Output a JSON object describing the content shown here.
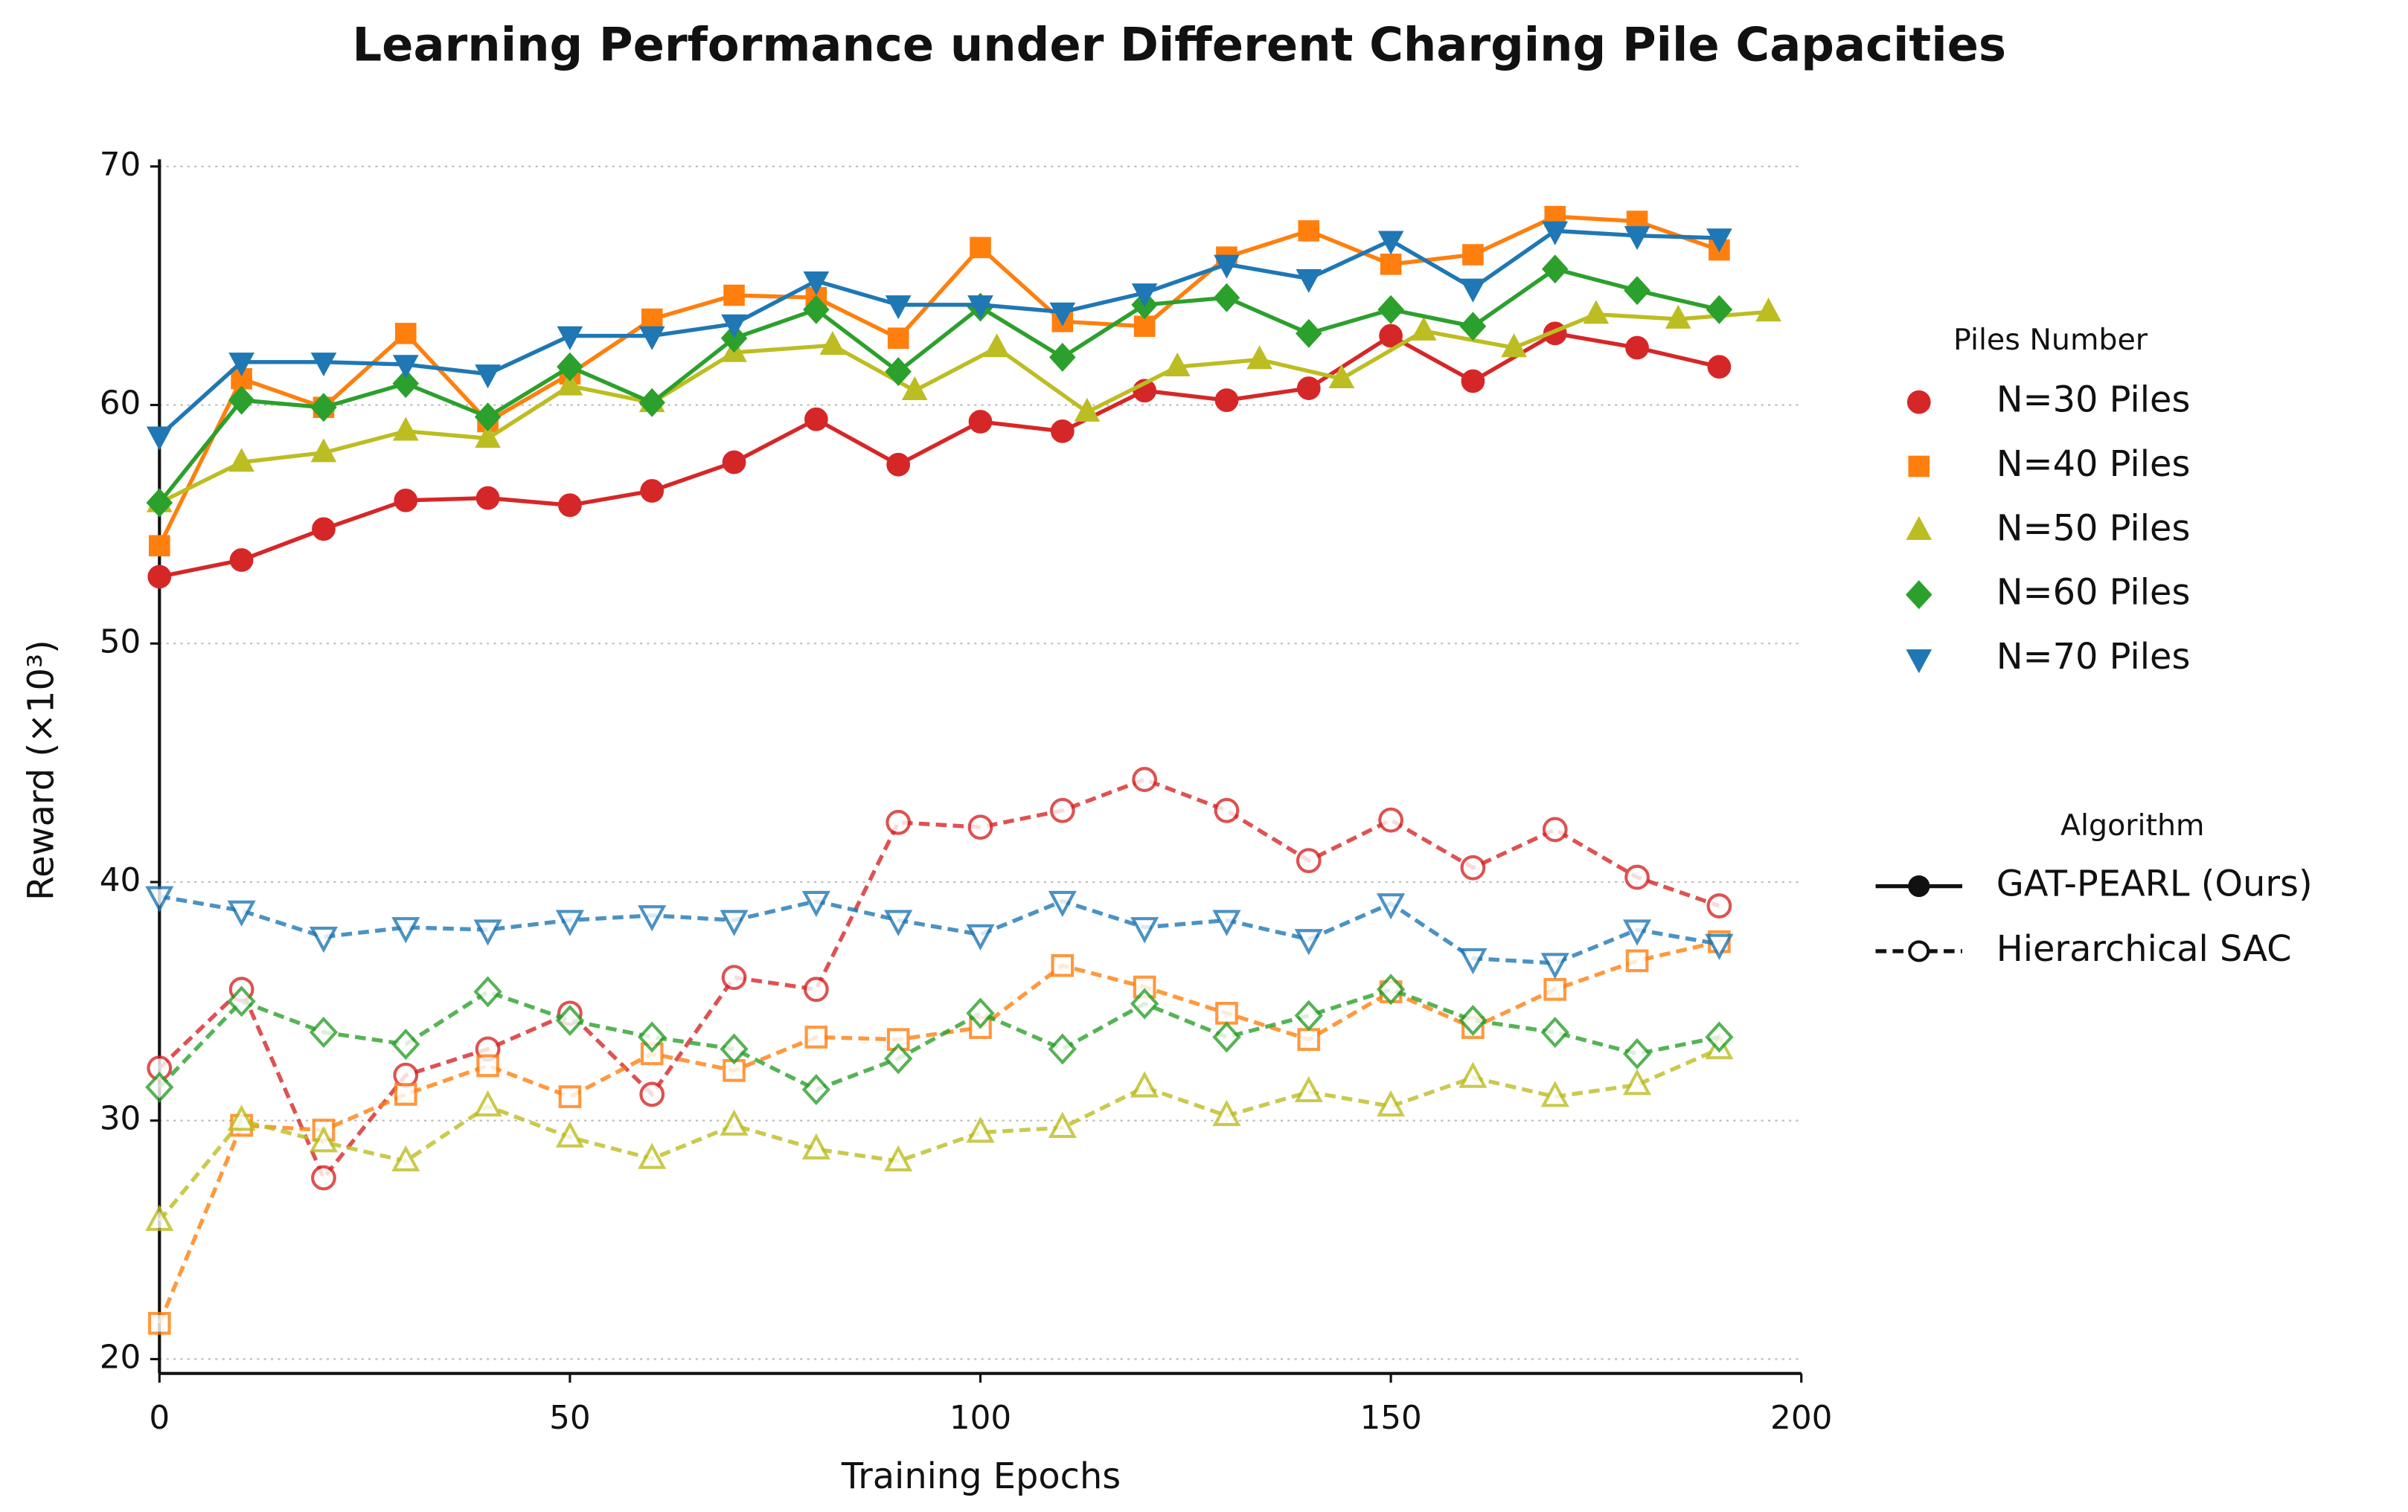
{
  "chart_data": {
    "type": "line",
    "title": "Learning Performance under Different Charging Pile Capacities",
    "xlabel": "Training Epochs",
    "ylabel": "Reward (×10³)",
    "xlim": [
      0,
      200
    ],
    "ylim": [
      19.4,
      70.3
    ],
    "xticks": [
      0,
      50,
      100,
      150,
      200
    ],
    "yticks": [
      20,
      30,
      40,
      50,
      60,
      70
    ],
    "grid": true,
    "piles_legend": {
      "title": "Piles Number",
      "entries": [
        {
          "label": "N=30 Piles",
          "color": "#d62728",
          "marker": "circle"
        },
        {
          "label": "N=40 Piles",
          "color": "#ff7f0e",
          "marker": "square"
        },
        {
          "label": "N=50 Piles",
          "color": "#bcbd22",
          "marker": "triangle-up"
        },
        {
          "label": "N=60 Piles",
          "color": "#2ca02c",
          "marker": "diamond"
        },
        {
          "label": "N=70 Piles",
          "color": "#1f77b4",
          "marker": "triangle-down"
        }
      ]
    },
    "algorithm_legend": {
      "title": "Algorithm",
      "entries": [
        {
          "label": "GAT-PEARL (Ours)",
          "line": "solid",
          "filled": true
        },
        {
          "label": "Hierarchical SAC",
          "line": "dashed",
          "filled": false
        }
      ]
    },
    "series": [
      {
        "pile": 0,
        "algorithm": 0,
        "x": [
          0,
          10,
          20,
          30,
          40,
          50,
          60,
          70,
          80,
          90,
          100,
          110,
          120,
          130,
          140,
          150,
          160,
          170,
          180,
          190
        ],
        "values": [
          52.8,
          53.5,
          54.8,
          56.0,
          56.1,
          55.8,
          56.4,
          57.6,
          59.4,
          57.5,
          59.3,
          58.9,
          60.6,
          60.2,
          60.7,
          62.9,
          61.0,
          63.0,
          62.4,
          61.6
        ]
      },
      {
        "pile": 1,
        "algorithm": 0,
        "x": [
          0,
          10,
          20,
          30,
          40,
          50,
          60,
          70,
          80,
          90,
          100,
          110,
          120,
          130,
          140,
          150,
          160,
          170,
          180,
          190
        ],
        "values": [
          54.1,
          61.1,
          59.9,
          63.0,
          59.3,
          61.3,
          63.6,
          64.6,
          64.5,
          62.8,
          66.6,
          63.5,
          63.3,
          66.2,
          67.3,
          65.9,
          66.3,
          67.9,
          67.7,
          66.5
        ]
      },
      {
        "pile": 2,
        "algorithm": 0,
        "x": [
          0,
          10,
          20,
          30,
          40,
          50,
          60,
          70,
          82,
          92,
          102,
          113,
          124,
          134,
          144,
          154,
          165,
          175,
          185,
          196
        ],
        "values": [
          55.9,
          57.6,
          58.0,
          58.9,
          58.6,
          60.8,
          60.1,
          62.2,
          62.5,
          60.6,
          62.4,
          59.7,
          61.6,
          61.9,
          61.1,
          63.1,
          62.4,
          63.8,
          63.6,
          63.9
        ]
      },
      {
        "pile": 3,
        "algorithm": 0,
        "x": [
          0,
          10,
          20,
          30,
          40,
          50,
          60,
          70,
          80,
          90,
          100,
          110,
          120,
          130,
          140,
          150,
          160,
          170,
          180,
          190
        ],
        "values": [
          55.9,
          60.2,
          59.9,
          60.9,
          59.5,
          61.6,
          60.1,
          62.8,
          64.0,
          61.4,
          64.1,
          62.0,
          64.2,
          64.5,
          63.0,
          64.0,
          63.3,
          65.7,
          64.8,
          64.0
        ]
      },
      {
        "pile": 4,
        "algorithm": 0,
        "x": [
          0,
          10,
          20,
          30,
          40,
          50,
          60,
          70,
          80,
          90,
          100,
          110,
          120,
          130,
          140,
          150,
          160,
          170,
          180,
          190
        ],
        "values": [
          58.7,
          61.8,
          61.8,
          61.7,
          61.3,
          62.9,
          62.9,
          63.4,
          65.2,
          64.2,
          64.2,
          63.9,
          64.7,
          65.9,
          65.3,
          66.9,
          64.9,
          67.3,
          67.1,
          67.0
        ]
      },
      {
        "pile": 0,
        "algorithm": 1,
        "x": [
          0,
          10,
          20,
          30,
          40,
          50,
          60,
          70,
          80,
          90,
          100,
          110,
          120,
          130,
          140,
          150,
          160,
          170,
          180,
          190
        ],
        "values": [
          32.2,
          35.5,
          27.6,
          31.9,
          33.0,
          34.5,
          31.1,
          36.0,
          35.5,
          42.5,
          42.3,
          43.0,
          44.3,
          43.0,
          40.9,
          42.6,
          40.6,
          42.2,
          40.2,
          39.0
        ]
      },
      {
        "pile": 1,
        "algorithm": 1,
        "x": [
          0,
          10,
          20,
          30,
          40,
          50,
          60,
          70,
          80,
          90,
          100,
          110,
          120,
          130,
          140,
          150,
          160,
          170,
          180,
          190
        ],
        "values": [
          21.5,
          29.8,
          29.6,
          31.1,
          32.3,
          31.0,
          32.8,
          32.1,
          33.5,
          33.4,
          33.9,
          36.5,
          35.6,
          34.5,
          33.4,
          35.4,
          33.9,
          35.5,
          36.7,
          37.5
        ]
      },
      {
        "pile": 2,
        "algorithm": 1,
        "x": [
          0,
          10,
          20,
          30,
          40,
          50,
          60,
          70,
          80,
          90,
          100,
          110,
          120,
          130,
          140,
          150,
          160,
          170,
          180,
          190
        ],
        "values": [
          25.8,
          30.0,
          29.1,
          28.3,
          30.6,
          29.3,
          28.4,
          29.8,
          28.8,
          28.3,
          29.5,
          29.7,
          31.4,
          30.2,
          31.2,
          30.6,
          31.8,
          31.0,
          31.5,
          33.0
        ]
      },
      {
        "pile": 3,
        "algorithm": 1,
        "x": [
          0,
          10,
          20,
          30,
          40,
          50,
          60,
          70,
          80,
          90,
          100,
          110,
          120,
          130,
          140,
          150,
          160,
          170,
          180,
          190
        ],
        "values": [
          31.4,
          35.0,
          33.7,
          33.2,
          35.4,
          34.2,
          33.5,
          33.0,
          31.3,
          32.6,
          34.5,
          33.0,
          34.9,
          33.5,
          34.4,
          35.5,
          34.2,
          33.7,
          32.8,
          33.5
        ]
      },
      {
        "pile": 4,
        "algorithm": 1,
        "x": [
          0,
          10,
          20,
          30,
          40,
          50,
          60,
          70,
          80,
          90,
          100,
          110,
          120,
          130,
          140,
          150,
          160,
          170,
          180,
          190
        ],
        "values": [
          39.4,
          38.8,
          37.7,
          38.1,
          38.0,
          38.4,
          38.6,
          38.4,
          39.2,
          38.4,
          37.8,
          39.2,
          38.1,
          38.4,
          37.6,
          39.1,
          36.8,
          36.6,
          38.0,
          37.4
        ]
      }
    ]
  }
}
